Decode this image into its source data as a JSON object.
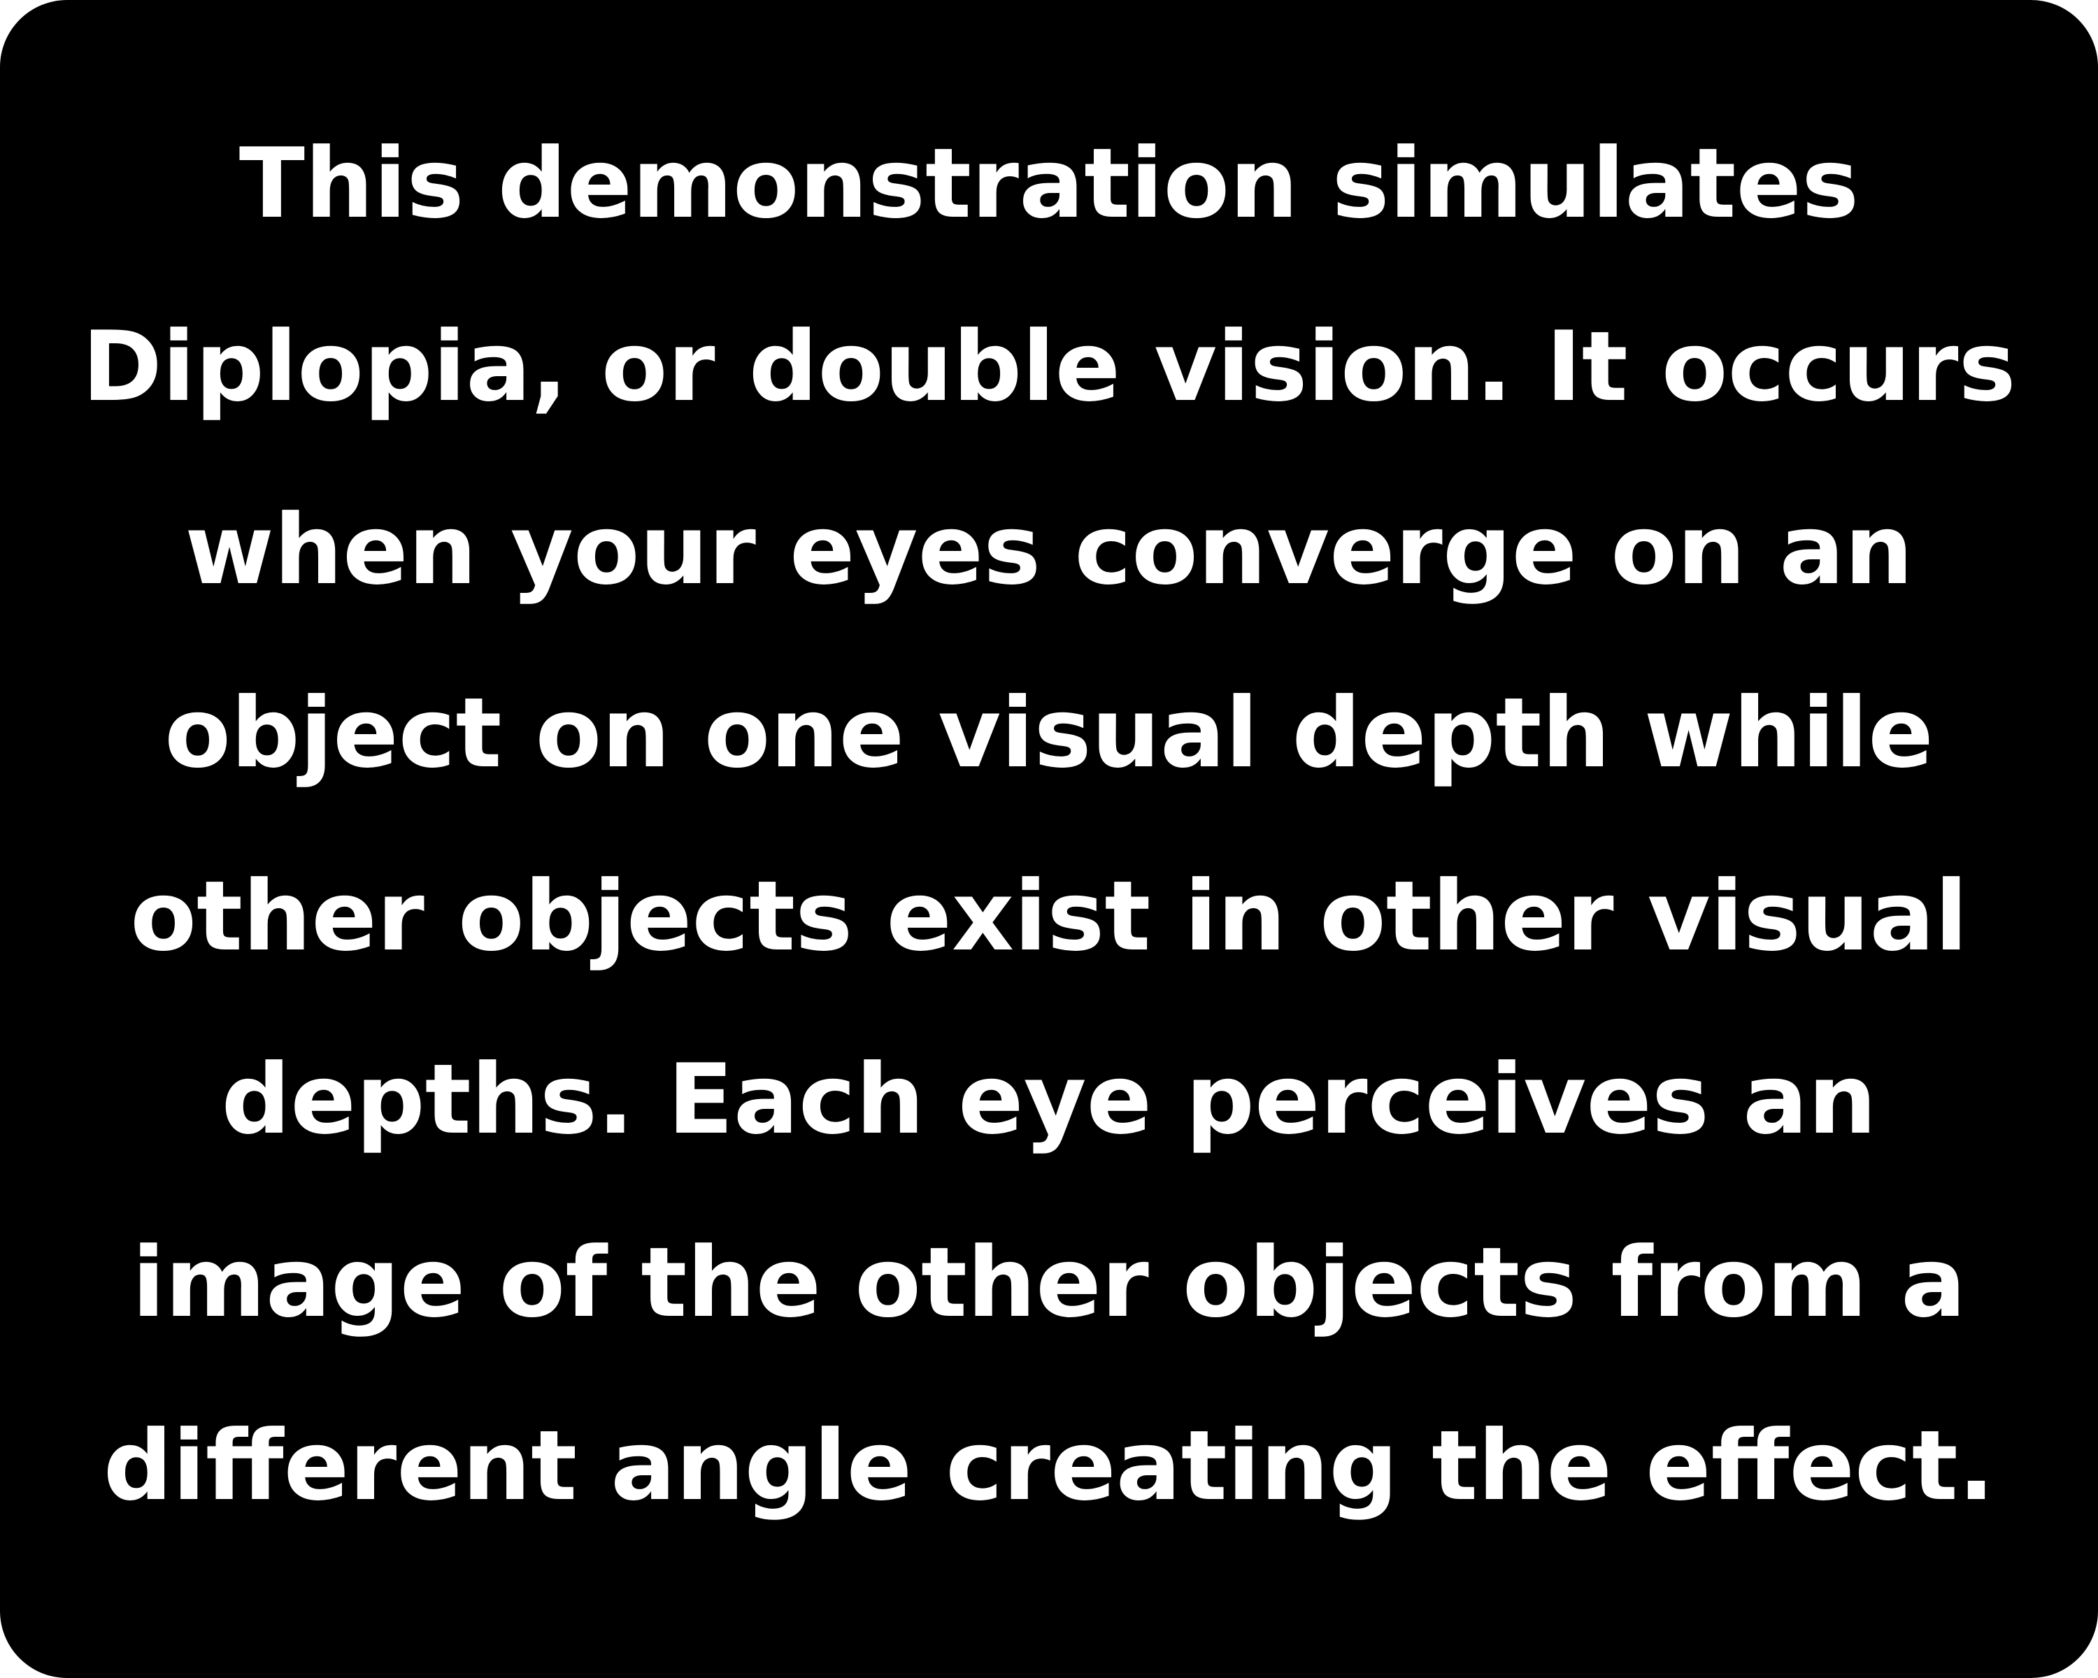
{
  "card": {
    "background_color": "#000000",
    "text_color": "#ffffff",
    "lines": [
      "This demonstration simulates",
      "Diplopia, or double vision. It occurs",
      "when your eyes converge on an",
      "object on one visual depth while",
      "other objects exist in other visual",
      "depths. Each eye perceives an",
      "image of the other objects from a",
      "different angle creating the effect."
    ]
  }
}
